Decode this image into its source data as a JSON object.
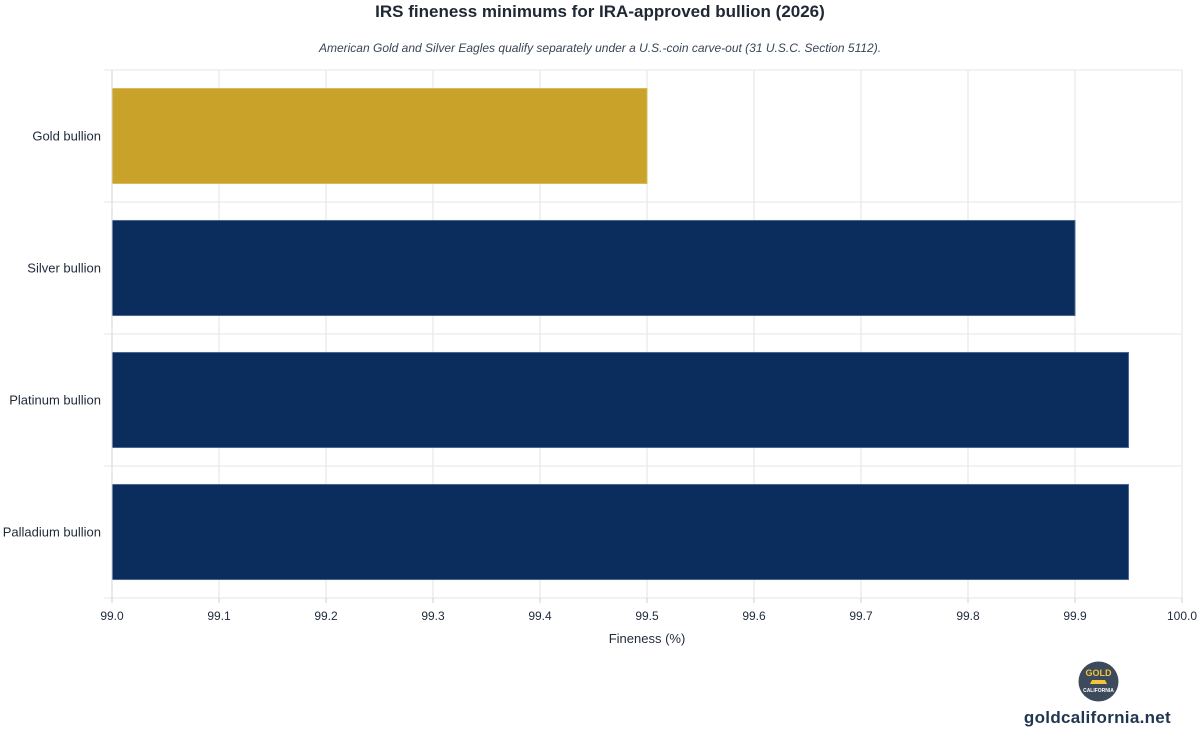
{
  "chart_data": {
    "type": "bar",
    "orientation": "horizontal",
    "title": "IRS fineness minimums for IRA-approved bullion (2026)",
    "subtitle": "American Gold and Silver Eagles qualify separately under a U.S.-coin carve-out (31 U.S.C. Section 5112).",
    "xlabel": "Fineness (%)",
    "ylabel": "",
    "categories": [
      "Gold bullion",
      "Silver bullion",
      "Platinum bullion",
      "Palladium bullion"
    ],
    "values": [
      99.5,
      99.9,
      99.95,
      99.95
    ],
    "colors": [
      "#c9a22a",
      "#0b2d5e",
      "#0b2d5e",
      "#0b2d5e"
    ],
    "xlim": [
      99.0,
      100.0
    ],
    "xticks": [
      "99.0",
      "99.1",
      "99.2",
      "99.3",
      "99.4",
      "99.5",
      "99.6",
      "99.7",
      "99.8",
      "99.9",
      "100.0"
    ],
    "grid": true
  },
  "branding": {
    "logo_top": "GOLD",
    "logo_bottom": "CALIFORNIA",
    "url": "goldcalifornia.net"
  }
}
